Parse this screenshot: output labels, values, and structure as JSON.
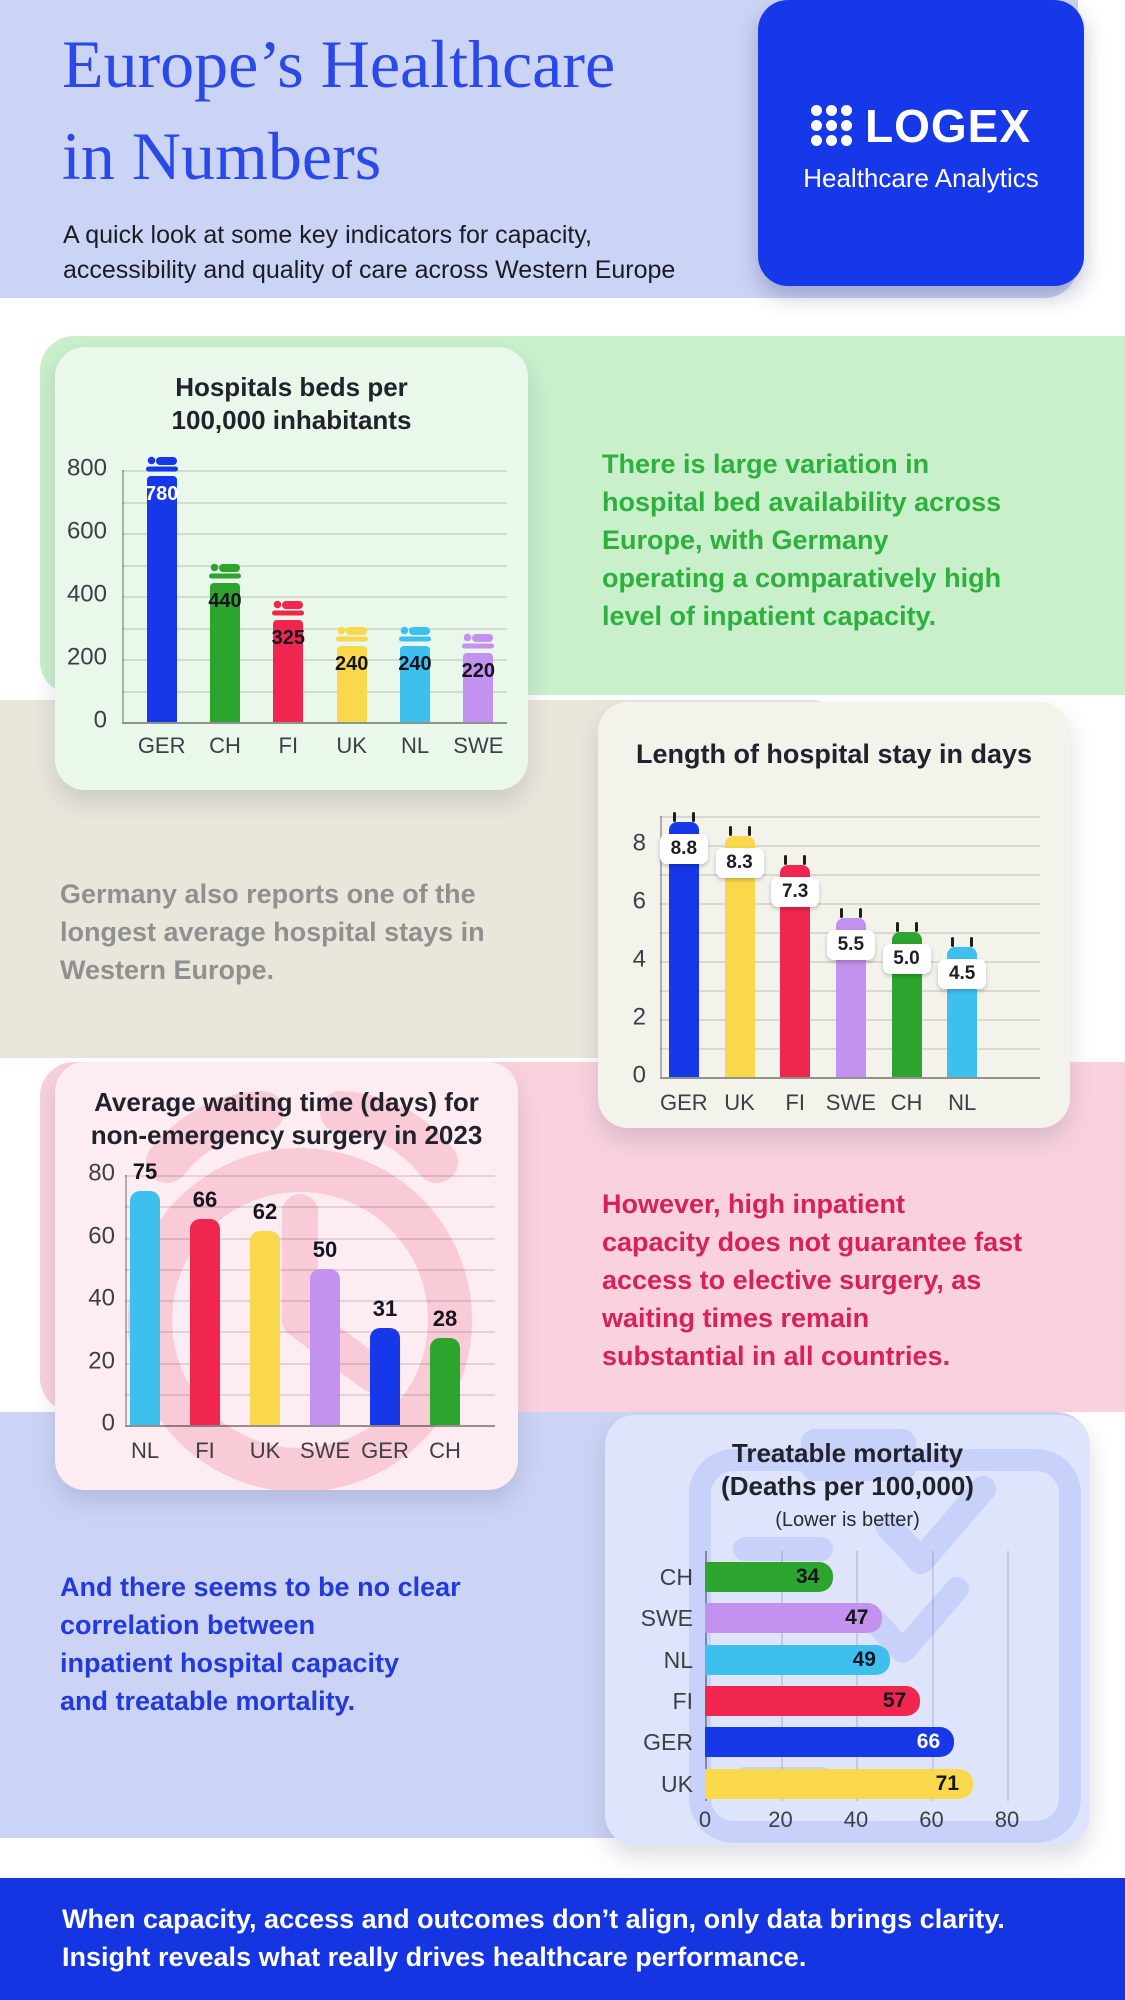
{
  "header": {
    "title": "Europe’s Healthcare\nin Numbers",
    "subtitle": "A quick look at some key indicators for capacity,\naccessibility and quality of care across Western Europe",
    "logo": {
      "name": "LOGEX",
      "tagline": "Healthcare Analytics"
    }
  },
  "insights": {
    "beds": "There is large variation in\nhospital bed availability across\nEurope, with Germany\noperating a comparatively high\nlevel of inpatient capacity.",
    "stay": "Germany also reports one of the\nlongest average hospital stays in\nWestern Europe.",
    "waiting": "However, high inpatient\ncapacity does not guarantee fast\naccess to elective surgery, as\nwaiting times remain\nsubstantial in all countries.",
    "mortality": "And there seems to be no clear\ncorrelation between\ninpatient hospital capacity\nand treatable mortality."
  },
  "footer": {
    "text": "When capacity, access and outcomes don’t align, only data brings clarity.\nInsight reveals what really drives healthcare performance."
  },
  "palette": {
    "blue": "#1638E8",
    "green": "#2DA42D",
    "red": "#F0264F",
    "yellow": "#FAD84C",
    "cyan": "#3EC0EF",
    "purple": "#C391EE",
    "band_lavender": "#ccd4f6",
    "band_green": "#c9efcb",
    "band_beige": "#e9e7dc",
    "band_pink": "#f9d2de",
    "footer_blue": "#1535E3"
  },
  "chart_data": [
    {
      "id": "beds",
      "type": "bar",
      "title": "Hospitals beds per\n100,000 inhabitants",
      "categories": [
        "GER",
        "CH",
        "FI",
        "UK",
        "NL",
        "SWE"
      ],
      "values": [
        780,
        440,
        325,
        240,
        240,
        220
      ],
      "colors": [
        "#1638E8",
        "#2DA42D",
        "#F0264F",
        "#FAD84C",
        "#3EC0EF",
        "#C391EE"
      ],
      "value_label_colors": [
        "#FFFFFF",
        "#15151F",
        "#15151F",
        "#15151F",
        "#15151F",
        "#15151F"
      ],
      "ylim": [
        0,
        800
      ],
      "yticks": [
        0,
        200,
        400,
        600,
        800
      ],
      "grid_step": 100,
      "unit_icon": "bed-icon",
      "legend": "none"
    },
    {
      "id": "stay",
      "type": "bar",
      "title": "Length of hospital stay in days",
      "categories": [
        "GER",
        "UK",
        "FI",
        "SWE",
        "CH",
        "NL"
      ],
      "values": [
        8.8,
        8.3,
        7.3,
        5.5,
        5.0,
        4.5
      ],
      "value_labels": [
        "8.8",
        "8.3",
        "7.3",
        "5.5",
        "5.0",
        "4.5"
      ],
      "colors": [
        "#1638E8",
        "#FAD84C",
        "#F0264F",
        "#C391EE",
        "#2DA42D",
        "#3EC0EF"
      ],
      "ylim": [
        0,
        9
      ],
      "yticks": [
        0,
        2,
        4,
        6,
        8
      ],
      "grid_step": 1,
      "unit_icon": "calendar-icon",
      "legend": "none"
    },
    {
      "id": "waiting",
      "type": "bar",
      "title": "Average waiting time (days) for\nnon-emergency surgery in 2023",
      "categories": [
        "NL",
        "FI",
        "UK",
        "SWE",
        "GER",
        "CH"
      ],
      "values": [
        75,
        66,
        62,
        50,
        31,
        28
      ],
      "colors": [
        "#3EC0EF",
        "#F0264F",
        "#FAD84C",
        "#C391EE",
        "#1638E8",
        "#2DA42D"
      ],
      "ylim": [
        0,
        80
      ],
      "yticks": [
        0,
        20,
        40,
        60,
        80
      ],
      "grid_step": 10,
      "value_label_position": "above",
      "legend": "none"
    },
    {
      "id": "mortality",
      "type": "bar_horizontal",
      "title": "Treatable mortality\n(Deaths per 100,000)",
      "subtitle": "(Lower is better)",
      "categories": [
        "CH",
        "SWE",
        "NL",
        "FI",
        "GER",
        "UK"
      ],
      "values": [
        34,
        47,
        49,
        57,
        66,
        71
      ],
      "colors": [
        "#2DA42D",
        "#C391EE",
        "#3EC0EF",
        "#F0264F",
        "#1638E8",
        "#FAD84C"
      ],
      "value_label_colors": [
        "#15151F",
        "#15151F",
        "#15151F",
        "#15151F",
        "#FFFFFF",
        "#15151F"
      ],
      "xlim": [
        0,
        80
      ],
      "xticks": [
        0,
        20,
        40,
        60,
        80
      ],
      "legend": "none"
    }
  ]
}
